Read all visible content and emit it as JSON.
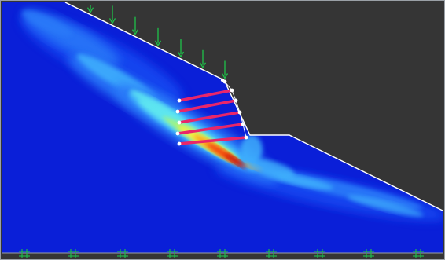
{
  "colors": {
    "background": "#3a3a3a",
    "sky": "#353535",
    "soil_base": "#0a1fd8",
    "contour_ramp": [
      "#1646f0",
      "#2a7af8",
      "#3fb1fc",
      "#5fe7f0",
      "#a6f57a",
      "#f5f244",
      "#ff9d1a",
      "#f04010",
      "#c20d0d"
    ],
    "slope_outline": "#ffffff",
    "load_arrow": "#1ec24a",
    "anchor": "#e8266a",
    "anchor_node": "#ffffff",
    "support": "#20b84c",
    "border": "#9aa0a6"
  },
  "view": {
    "mode": "shear-strain-contours",
    "load": {
      "kind": "surcharge",
      "icon": "arrow-down-icon",
      "count": 7
    },
    "anchors": {
      "count": 5,
      "icon": "rock-bolt"
    },
    "supports": {
      "icon": "fixed-support-icon",
      "count": 9
    }
  }
}
